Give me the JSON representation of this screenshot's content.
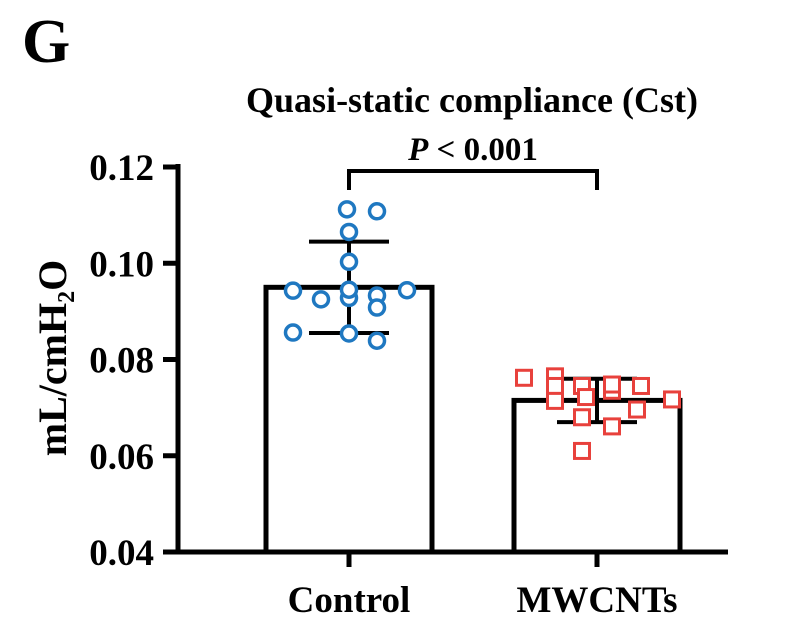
{
  "panel_label": "G",
  "chart_data": {
    "type": "bar",
    "title": "Quasi-static compliance (Cst)",
    "xlabel": "",
    "ylabel": "mL/cmH₂O",
    "ylim": [
      0.04,
      0.12
    ],
    "yticks": [
      "0.04",
      "0.06",
      "0.08",
      "0.10",
      "0.12"
    ],
    "categories": [
      "Control",
      "MWCNTs"
    ],
    "values": [
      0.095,
      0.0715
    ],
    "error_sd": [
      0.0095,
      0.0045
    ],
    "groups": [
      {
        "name": "Control",
        "marker": "circle",
        "color": "#1f78c1",
        "points": [
          0.1112,
          0.1108,
          0.1065,
          0.1003,
          0.0943,
          0.0925,
          0.0928,
          0.0933,
          0.0944,
          0.0945,
          0.0908,
          0.0856,
          0.0854,
          0.0839
        ]
      },
      {
        "name": "MWCNTs",
        "marker": "square",
        "color": "#e8413c",
        "points": [
          0.0762,
          0.0765,
          0.0745,
          0.0735,
          0.0745,
          0.0745,
          0.0748,
          0.0714,
          0.0722,
          0.0696,
          0.068,
          0.0717,
          0.0661,
          0.061
        ]
      }
    ],
    "annotation": {
      "italic": "P",
      "text": " < 0.001"
    }
  }
}
